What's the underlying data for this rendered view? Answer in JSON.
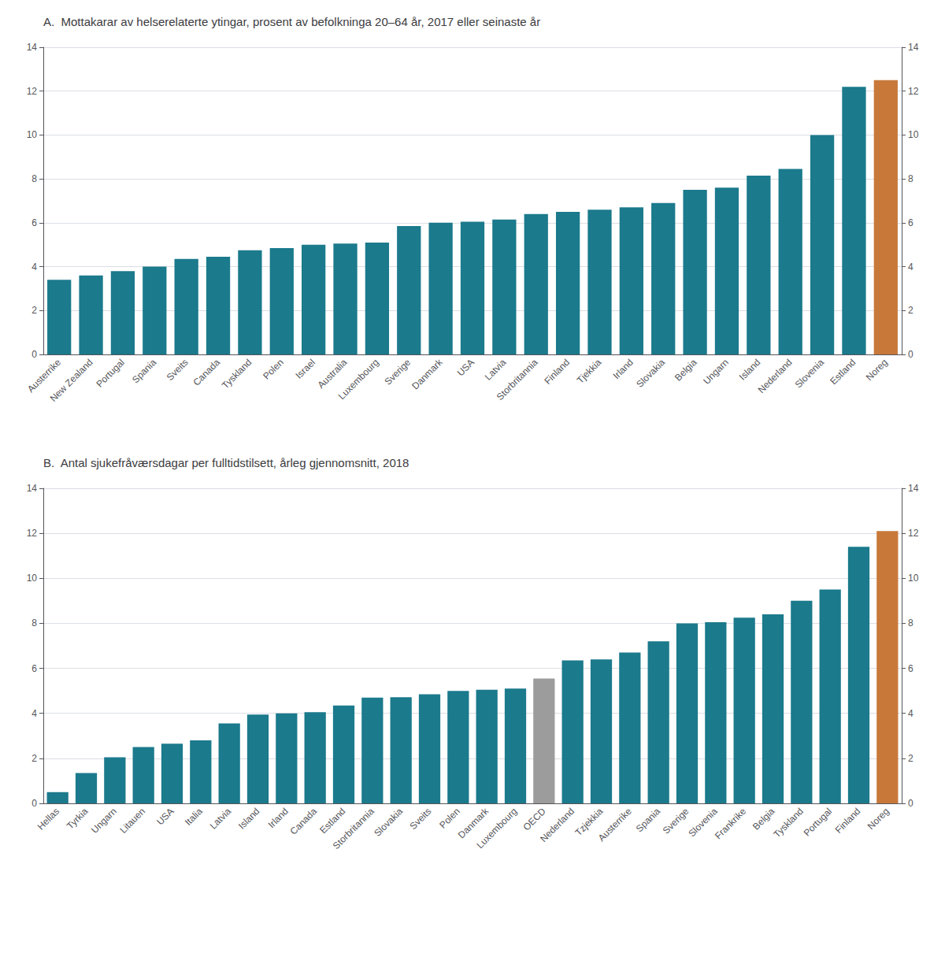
{
  "chart_data": [
    {
      "type": "bar",
      "title": "A.  Mottakarar av helserelaterte ytingar, prosent av befolkninga 20–64 år, 2017 eller seinaste år",
      "categories": [
        "Austerrike",
        "New Zealand",
        "Portugal",
        "Spania",
        "Sveits",
        "Canada",
        "Tyskland",
        "Polen",
        "Israel",
        "Australia",
        "Luxembourg",
        "Sverige",
        "Danmark",
        "USA",
        "Latvia",
        "Storbritannia",
        "Finland",
        "Tjekkia",
        "Irland",
        "Slovakia",
        "Belgia",
        "Ungarn",
        "Island",
        "Nederland",
        "Slovenia",
        "Estland",
        "Noreg"
      ],
      "values": [
        3.4,
        3.6,
        3.8,
        4.0,
        4.35,
        4.45,
        4.75,
        4.85,
        5.0,
        5.05,
        5.1,
        5.85,
        6.0,
        6.05,
        6.15,
        6.4,
        6.5,
        6.6,
        6.7,
        6.9,
        7.5,
        7.6,
        8.15,
        8.45,
        10.0,
        12.2,
        12.5
      ],
      "colors": [
        "#1b7a8c",
        "#1b7a8c",
        "#1b7a8c",
        "#1b7a8c",
        "#1b7a8c",
        "#1b7a8c",
        "#1b7a8c",
        "#1b7a8c",
        "#1b7a8c",
        "#1b7a8c",
        "#1b7a8c",
        "#1b7a8c",
        "#1b7a8c",
        "#1b7a8c",
        "#1b7a8c",
        "#1b7a8c",
        "#1b7a8c",
        "#1b7a8c",
        "#1b7a8c",
        "#1b7a8c",
        "#1b7a8c",
        "#1b7a8c",
        "#1b7a8c",
        "#1b7a8c",
        "#1b7a8c",
        "#1b7a8c",
        "#c8793a"
      ],
      "ylim": [
        0,
        14
      ],
      "yticks": [
        0,
        2,
        4,
        6,
        8,
        10,
        12,
        14
      ],
      "y2lim": [
        0,
        14
      ],
      "y2ticks": [
        0,
        2,
        4,
        6,
        8,
        10,
        12,
        14
      ],
      "grid": true
    },
    {
      "type": "bar",
      "title": "B.  Antal sjukefråværsdagar per fulltidstilsett, årleg gjennomsnitt, 2018",
      "categories": [
        "Hellas",
        "Tyrkia",
        "Ungarn",
        "Litauen",
        "USA",
        "Italia",
        "Latvia",
        "Island",
        "Irland",
        "Canada",
        "Estland",
        "Storbritannia",
        "Slovakia",
        "Sveits",
        "Polen",
        "Danmark",
        "Luxembourg",
        "OECD",
        "Nederland",
        "Tzjekkia",
        "Austerrike",
        "Spania",
        "Sverige",
        "Slovenia",
        "Frankrike",
        "Belgia",
        "Tyskland",
        "Portugal",
        "Finland",
        "Noreg"
      ],
      "values": [
        0.5,
        1.35,
        2.05,
        2.5,
        2.65,
        2.8,
        3.55,
        3.95,
        4.0,
        4.05,
        4.35,
        4.7,
        4.72,
        4.85,
        5.0,
        5.05,
        5.1,
        5.55,
        6.35,
        6.4,
        6.7,
        7.2,
        8.0,
        8.05,
        8.25,
        8.4,
        9.0,
        9.5,
        11.4,
        12.1
      ],
      "colors": [
        "#1b7a8c",
        "#1b7a8c",
        "#1b7a8c",
        "#1b7a8c",
        "#1b7a8c",
        "#1b7a8c",
        "#1b7a8c",
        "#1b7a8c",
        "#1b7a8c",
        "#1b7a8c",
        "#1b7a8c",
        "#1b7a8c",
        "#1b7a8c",
        "#1b7a8c",
        "#1b7a8c",
        "#1b7a8c",
        "#1b7a8c",
        "#9c9c9c",
        "#1b7a8c",
        "#1b7a8c",
        "#1b7a8c",
        "#1b7a8c",
        "#1b7a8c",
        "#1b7a8c",
        "#1b7a8c",
        "#1b7a8c",
        "#1b7a8c",
        "#1b7a8c",
        "#1b7a8c",
        "#c8793a"
      ],
      "ylim": [
        0,
        14
      ],
      "yticks": [
        0,
        2,
        4,
        6,
        8,
        10,
        12,
        14
      ],
      "y2lim": [
        0,
        14
      ],
      "y2ticks": [
        0,
        2,
        4,
        6,
        8,
        10,
        12,
        14
      ],
      "grid": true
    }
  ]
}
